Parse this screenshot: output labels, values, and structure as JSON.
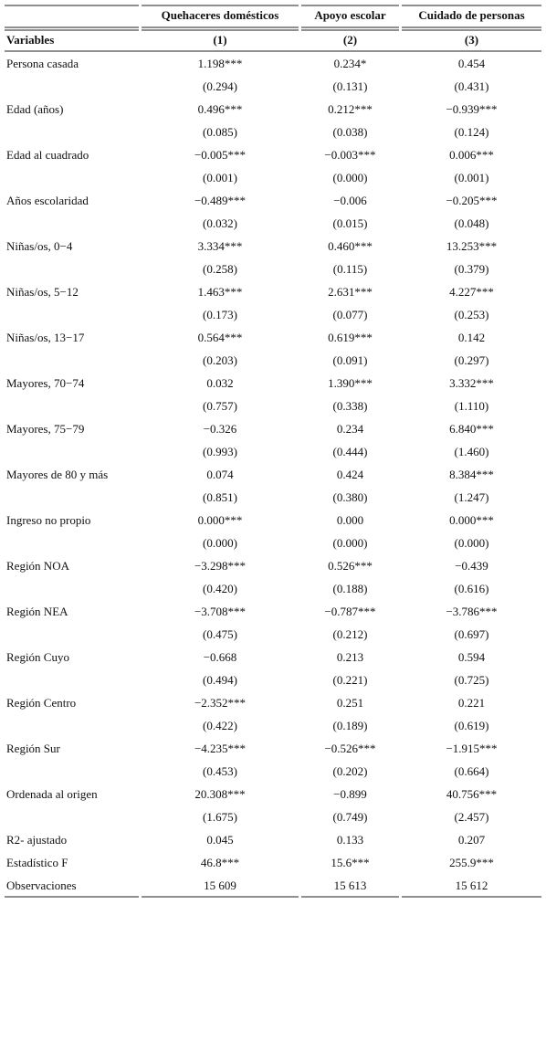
{
  "table": {
    "header": {
      "columns": [
        "Quehaceres domésticos",
        "Apoyo escolar",
        "Cuidado de personas"
      ],
      "variables_label": "Variables",
      "numbers": [
        "(1)",
        "(2)",
        "(3)"
      ]
    },
    "rows": [
      {
        "label": "Persona casada",
        "coef": [
          "1.198***",
          "0.234*",
          "0.454"
        ],
        "se": [
          "(0.294)",
          "(0.131)",
          "(0.431)"
        ]
      },
      {
        "label": "Edad (años)",
        "coef": [
          "0.496***",
          "0.212***",
          "−0.939***"
        ],
        "se": [
          "(0.085)",
          "(0.038)",
          "(0.124)"
        ]
      },
      {
        "label": "Edad al cuadrado",
        "coef": [
          "−0.005***",
          "−0.003***",
          "0.006***"
        ],
        "se": [
          "(0.001)",
          "(0.000)",
          "(0.001)"
        ]
      },
      {
        "label": "Años escolaridad",
        "coef": [
          "−0.489***",
          "−0.006",
          "−0.205***"
        ],
        "se": [
          "(0.032)",
          "(0.015)",
          "(0.048)"
        ]
      },
      {
        "label": "Niñas/os, 0−4",
        "coef": [
          "3.334***",
          "0.460***",
          "13.253***"
        ],
        "se": [
          "(0.258)",
          "(0.115)",
          "(0.379)"
        ]
      },
      {
        "label": "Niñas/os, 5−12",
        "coef": [
          "1.463***",
          "2.631***",
          "4.227***"
        ],
        "se": [
          "(0.173)",
          "(0.077)",
          "(0.253)"
        ]
      },
      {
        "label": "Niñas/os, 13−17",
        "coef": [
          "0.564***",
          "0.619***",
          "0.142"
        ],
        "se": [
          "(0.203)",
          "(0.091)",
          "(0.297)"
        ]
      },
      {
        "label": "Mayores, 70−74",
        "coef": [
          "0.032",
          "1.390***",
          "3.332***"
        ],
        "se": [
          "(0.757)",
          "(0.338)",
          "(1.110)"
        ]
      },
      {
        "label": "Mayores, 75−79",
        "coef": [
          "−0.326",
          "0.234",
          "6.840***"
        ],
        "se": [
          "(0.993)",
          "(0.444)",
          "(1.460)"
        ]
      },
      {
        "label": "Mayores de 80 y más",
        "coef": [
          "0.074",
          "0.424",
          "8.384***"
        ],
        "se": [
          "(0.851)",
          "(0.380)",
          "(1.247)"
        ]
      },
      {
        "label": "Ingreso no propio",
        "coef": [
          "0.000***",
          "0.000",
          "0.000***"
        ],
        "se": [
          "(0.000)",
          "(0.000)",
          "(0.000)"
        ]
      },
      {
        "label": "Región NOA",
        "coef": [
          "−3.298***",
          "0.526***",
          "−0.439"
        ],
        "se": [
          "(0.420)",
          "(0.188)",
          "(0.616)"
        ]
      },
      {
        "label": "Región NEA",
        "coef": [
          "−3.708***",
          "−0.787***",
          "−3.786***"
        ],
        "se": [
          "(0.475)",
          "(0.212)",
          "(0.697)"
        ]
      },
      {
        "label": "Región Cuyo",
        "coef": [
          "−0.668",
          "0.213",
          "0.594"
        ],
        "se": [
          "(0.494)",
          "(0.221)",
          "(0.725)"
        ]
      },
      {
        "label": "Región Centro",
        "coef": [
          "−2.352***",
          "0.251",
          "0.221"
        ],
        "se": [
          "(0.422)",
          "(0.189)",
          "(0.619)"
        ]
      },
      {
        "label": "Región Sur",
        "coef": [
          "−4.235***",
          "−0.526***",
          "−1.915***"
        ],
        "se": [
          "(0.453)",
          "(0.202)",
          "(0.664)"
        ]
      },
      {
        "label": "Ordenada al origen",
        "coef": [
          "20.308***",
          "−0.899",
          "40.756***"
        ],
        "se": [
          "(1.675)",
          "(0.749)",
          "(2.457)"
        ]
      },
      {
        "label": "R2- ajustado",
        "coef": [
          "0.045",
          "0.133",
          "0.207"
        ]
      },
      {
        "label": "Estadístico F",
        "coef": [
          "46.8***",
          "15.6***",
          "255.9***"
        ]
      },
      {
        "label": "Observaciones",
        "coef": [
          "15 609",
          "15 613",
          "15 612"
        ]
      }
    ]
  }
}
